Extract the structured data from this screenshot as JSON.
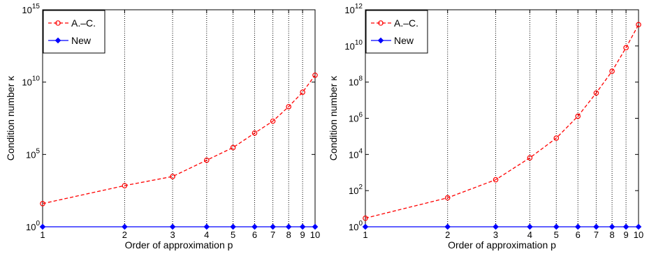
{
  "chart_data": [
    {
      "type": "line",
      "xlabel": "Order of approximation p",
      "ylabel": "Condition number κ",
      "xscale": "log",
      "yscale": "log",
      "xlim": [
        1,
        10
      ],
      "ylim": [
        1,
        1000000000000000.0
      ],
      "grid": "vertical dotted at x ticks",
      "x_ticks": [
        1,
        2,
        3,
        4,
        5,
        6,
        7,
        8,
        9,
        10
      ],
      "y_ticks": [
        {
          "value": 1,
          "base": "10",
          "exp": "0"
        },
        {
          "value": 100000,
          "base": "10",
          "exp": "5"
        },
        {
          "value": 10000000000.0,
          "base": "10",
          "exp": "10"
        },
        {
          "value": 1000000000000000.0,
          "base": "10",
          "exp": "15"
        }
      ],
      "legend_position": "top-left",
      "series": [
        {
          "name": "A.–C.",
          "color": "#ff0000",
          "style": "dashed",
          "marker": "circle",
          "x": [
            1,
            2,
            3,
            4,
            5,
            6,
            7,
            8,
            9,
            10
          ],
          "y": [
            40,
            700,
            3000,
            40000,
            300000,
            3000000,
            20000000,
            200000000,
            2000000000,
            30000000000
          ]
        },
        {
          "name": "New",
          "color": "#0000ff",
          "style": "solid",
          "marker": "diamond",
          "x": [
            1,
            2,
            3,
            4,
            5,
            6,
            7,
            8,
            9,
            10
          ],
          "y": [
            1,
            1,
            1,
            1,
            1,
            1,
            1,
            1,
            1,
            1
          ]
        }
      ]
    },
    {
      "type": "line",
      "xlabel": "Order of approximation p",
      "ylabel": "Condition number κ",
      "xscale": "log",
      "yscale": "log",
      "xlim": [
        1,
        10
      ],
      "ylim": [
        1,
        1000000000000.0
      ],
      "grid": "vertical dotted at x ticks",
      "x_ticks": [
        1,
        2,
        3,
        4,
        5,
        6,
        7,
        8,
        9,
        10
      ],
      "y_ticks": [
        {
          "value": 1,
          "base": "10",
          "exp": "0"
        },
        {
          "value": 100,
          "base": "10",
          "exp": "2"
        },
        {
          "value": 10000,
          "base": "10",
          "exp": "4"
        },
        {
          "value": 1000000,
          "base": "10",
          "exp": "6"
        },
        {
          "value": 100000000,
          "base": "10",
          "exp": "8"
        },
        {
          "value": 10000000000,
          "base": "10",
          "exp": "10"
        },
        {
          "value": 1000000000000.0,
          "base": "10",
          "exp": "12"
        }
      ],
      "legend_position": "top-left",
      "series": [
        {
          "name": "A.–C.",
          "color": "#ff0000",
          "style": "dashed",
          "marker": "circle",
          "x": [
            1,
            2,
            3,
            4,
            5,
            6,
            7,
            8,
            9,
            10
          ],
          "y": [
            3,
            40,
            400,
            6500,
            80000,
            1300000,
            25000000,
            400000000,
            8000000000,
            150000000000
          ]
        },
        {
          "name": "New",
          "color": "#0000ff",
          "style": "solid",
          "marker": "diamond",
          "x": [
            1,
            2,
            3,
            4,
            5,
            6,
            7,
            8,
            9,
            10
          ],
          "y": [
            1,
            1,
            1,
            1,
            1,
            1,
            1,
            1,
            1,
            1
          ]
        }
      ]
    }
  ]
}
